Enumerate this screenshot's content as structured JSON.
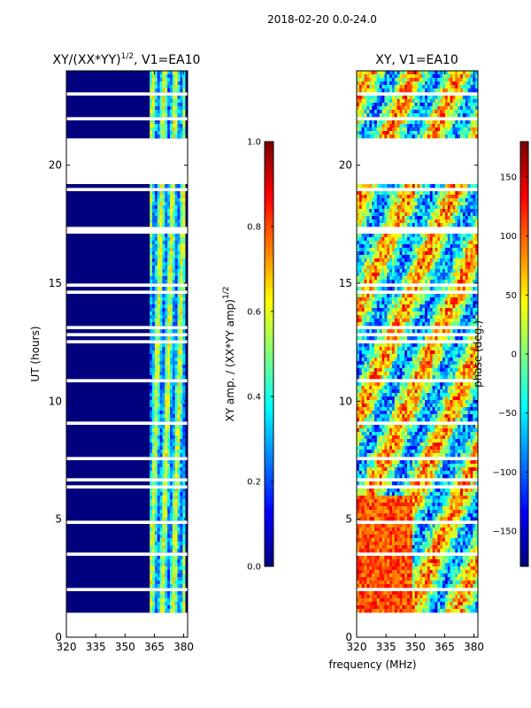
{
  "suptitle": "2018-02-20 0.0-24.0",
  "colors": {
    "nodata": "#ffffff",
    "jet": [
      "#00007f",
      "#0000ff",
      "#007fff",
      "#00ffff",
      "#7fff7f",
      "#ffff00",
      "#ff7f00",
      "#ff0000",
      "#7f0000"
    ]
  },
  "chart_data": [
    {
      "type": "heatmap",
      "title": "XY/(XX*YY)",
      "title_sup": "1/2",
      "title_suffix": ", V1=EA10",
      "xlabel": "frequency (MHz)",
      "ylabel": "UT (hours)",
      "xlim": [
        320,
        382
      ],
      "ylim": [
        0,
        24
      ],
      "xticks": [
        320,
        335,
        350,
        365,
        380
      ],
      "yticks": [
        0,
        5,
        10,
        15,
        20
      ],
      "colorbar": {
        "label": "XY amp. / (XX*YY amp)",
        "label_sup": "1/2",
        "clim": [
          0.0,
          1.0
        ],
        "ticks": [
          "0.0",
          "0.2",
          "0.4",
          "0.6",
          "0.8",
          "1.0"
        ]
      },
      "data_gaps_hours": [
        [
          0.0,
          1.1
        ],
        [
          19.25,
          21.2
        ]
      ],
      "bright_band_mhz": [
        363,
        381
      ]
    },
    {
      "type": "heatmap",
      "title": "XY, V1=EA10",
      "xlim": [
        320,
        382
      ],
      "ylim": [
        0,
        24
      ],
      "xticks": [
        320,
        335,
        350,
        365,
        380
      ],
      "yticks": [
        0,
        5,
        10,
        15,
        20
      ],
      "colorbar": {
        "label": "phase (deg.)",
        "clim": [
          -180,
          180
        ],
        "ticks": [
          "−150",
          "−100",
          "−50",
          "0",
          "50",
          "100",
          "150"
        ]
      },
      "data_gaps_hours": [
        [
          0.0,
          1.1
        ],
        [
          19.25,
          21.2
        ]
      ]
    }
  ]
}
